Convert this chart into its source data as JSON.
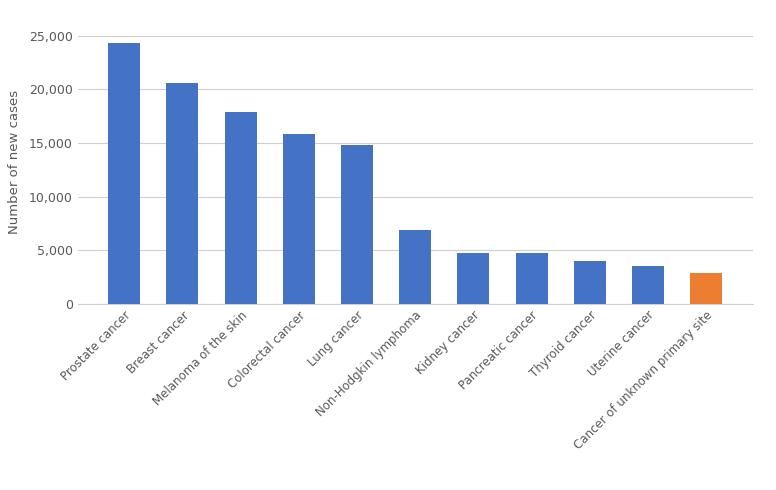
{
  "categories": [
    "Prostate cancer",
    "Breast cancer",
    "Melanoma of the skin",
    "Colorectal cancer",
    "Lung cancer",
    "Non-Hodgkin lymphoma",
    "Kidney cancer",
    "Pancreatic cancer",
    "Thyroid cancer",
    "Uterine cancer",
    "Cancer of unknown primary site"
  ],
  "values": [
    24300,
    20600,
    17900,
    15800,
    14800,
    6900,
    4700,
    4700,
    4000,
    3500,
    2900
  ],
  "bar_colors": [
    "#4472C4",
    "#4472C4",
    "#4472C4",
    "#4472C4",
    "#4472C4",
    "#4472C4",
    "#4472C4",
    "#4472C4",
    "#4472C4",
    "#4472C4",
    "#ED7D31"
  ],
  "ylabel": "Number of new cases",
  "ylim": [
    0,
    26500
  ],
  "yticks": [
    0,
    5000,
    10000,
    15000,
    20000,
    25000
  ],
  "ytick_labels": [
    "0",
    "5,000",
    "10,000",
    "15,000",
    "20,000",
    "25,000"
  ],
  "background_color": "#FFFFFF",
  "grid_color": "#D0D0D0",
  "bar_width": 0.55,
  "label_fontsize": 8.5,
  "ylabel_fontsize": 9.5,
  "tick_fontsize": 9
}
